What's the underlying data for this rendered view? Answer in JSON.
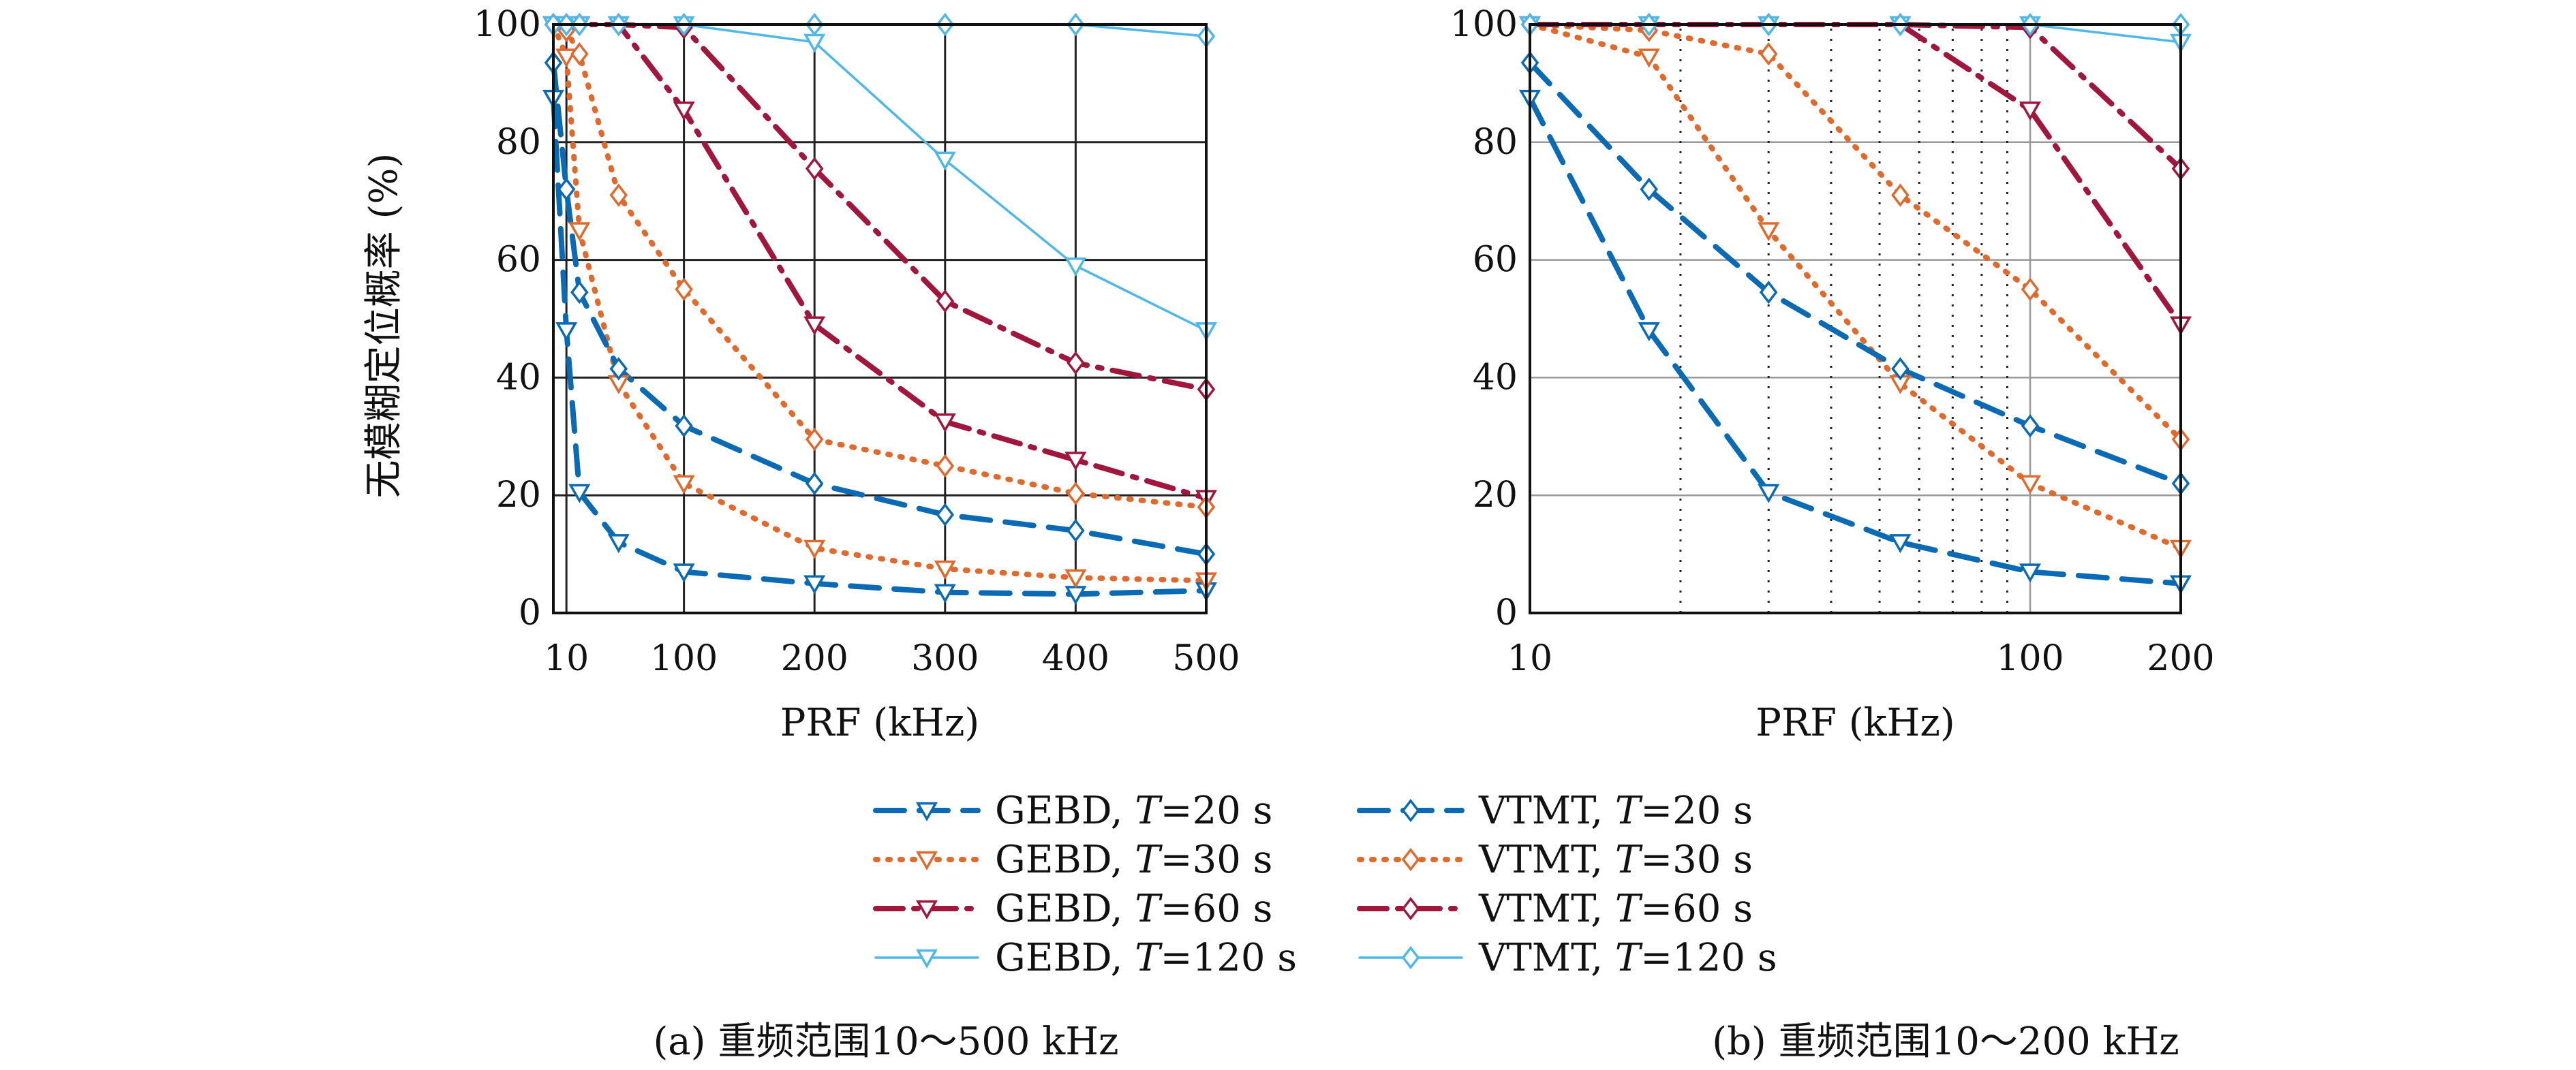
{
  "figure": {
    "caption_a": "(a) 重频范围10～500 kHz",
    "caption_b": "(b) 重频范围10～200 kHz"
  },
  "legend": {
    "entries": [
      {
        "method": "GEBD",
        "t_value": "20 s",
        "color": "#0a6ab3",
        "dash": "long-dash",
        "marker": "triangle-down"
      },
      {
        "method": "GEBD",
        "t_value": "30 s",
        "color": "#e06a2c",
        "dash": "dotted",
        "marker": "triangle-down"
      },
      {
        "method": "GEBD",
        "t_value": "60 s",
        "color": "#a0163d",
        "dash": "dash-dot",
        "marker": "triangle-down"
      },
      {
        "method": "GEBD",
        "t_value": "120 s",
        "color": "#4fb8e6",
        "dash": "solid",
        "marker": "triangle-down"
      },
      {
        "method": "VTMT",
        "t_value": "20 s",
        "color": "#0a6ab3",
        "dash": "long-dash",
        "marker": "diamond"
      },
      {
        "method": "VTMT",
        "t_value": "30 s",
        "color": "#e06a2c",
        "dash": "dotted",
        "marker": "diamond"
      },
      {
        "method": "VTMT",
        "t_value": "60 s",
        "color": "#a0163d",
        "dash": "dash-dot",
        "marker": "diamond"
      },
      {
        "method": "VTMT",
        "t_value": "120 s",
        "color": "#4fb8e6",
        "dash": "solid",
        "marker": "diamond"
      }
    ],
    "t_symbol": "T",
    "separator": ", ",
    "equals": "="
  },
  "chart_data": [
    {
      "type": "line",
      "panel": "a",
      "xlabel": "PRF (kHz)",
      "ylabel": "无模糊定位概率 (%)",
      "xscale": "linear",
      "xlim": [
        0,
        500
      ],
      "ylim": [
        0,
        100
      ],
      "xticks": [
        10,
        100,
        200,
        300,
        400,
        500
      ],
      "xtick_labels": [
        "10",
        "100",
        "200",
        "300",
        "400",
        "500"
      ],
      "yticks": [
        0,
        20,
        40,
        60,
        80,
        100
      ],
      "ytick_labels": [
        "0",
        "20",
        "40",
        "60",
        "80",
        "100"
      ],
      "grid": true,
      "series": [
        {
          "legend_index": 0,
          "x": [
            0,
            10,
            20,
            50,
            100,
            200,
            300,
            400,
            500
          ],
          "y": [
            87.5,
            48,
            20.5,
            12,
            7,
            5,
            3.5,
            3.2,
            3.8
          ]
        },
        {
          "legend_index": 1,
          "x": [
            0,
            10,
            20,
            50,
            100,
            200,
            300,
            400,
            500
          ],
          "y": [
            100,
            94.5,
            65,
            39,
            22,
            11,
            7.5,
            6,
            5.5
          ]
        },
        {
          "legend_index": 2,
          "x": [
            0,
            10,
            20,
            50,
            100,
            200,
            300,
            400,
            500
          ],
          "y": [
            100,
            100,
            100,
            100,
            85.5,
            49,
            32.5,
            26,
            19.5
          ]
        },
        {
          "legend_index": 3,
          "x": [
            0,
            10,
            20,
            50,
            100,
            200,
            300,
            400,
            500
          ],
          "y": [
            100,
            100,
            100,
            100,
            100,
            97,
            77,
            59,
            48
          ]
        },
        {
          "legend_index": 4,
          "x": [
            0,
            10,
            20,
            50,
            100,
            200,
            300,
            400,
            500
          ],
          "y": [
            93.5,
            72,
            54.5,
            41.5,
            31.8,
            22,
            16.7,
            14,
            10
          ]
        },
        {
          "legend_index": 5,
          "x": [
            0,
            10,
            20,
            50,
            100,
            200,
            300,
            400,
            500
          ],
          "y": [
            100,
            99,
            95,
            71,
            55,
            29.5,
            25,
            20.3,
            18
          ]
        },
        {
          "legend_index": 6,
          "x": [
            0,
            10,
            20,
            50,
            100,
            200,
            300,
            400,
            500
          ],
          "y": [
            100,
            100,
            100,
            100,
            99.5,
            75.5,
            53,
            42.5,
            38
          ]
        },
        {
          "legend_index": 7,
          "x": [
            0,
            10,
            20,
            50,
            100,
            200,
            300,
            400,
            500
          ],
          "y": [
            100,
            100,
            100,
            100,
            100,
            100,
            100,
            100,
            98
          ]
        }
      ]
    },
    {
      "type": "line",
      "panel": "b",
      "xlabel": "PRF (kHz)",
      "ylabel": "",
      "xscale": "log",
      "xlim": [
        10,
        200
      ],
      "ylim": [
        0,
        100
      ],
      "xticks": [
        10,
        100,
        200
      ],
      "xtick_labels": [
        "10",
        "100",
        "200"
      ],
      "minor_xticks": [
        20,
        30,
        40,
        50,
        60,
        70,
        80,
        90
      ],
      "yticks": [
        0,
        20,
        40,
        60,
        80,
        100
      ],
      "ytick_labels": [
        "0",
        "20",
        "40",
        "60",
        "80",
        "100"
      ],
      "grid": true,
      "series": [
        {
          "legend_index": 0,
          "x": [
            10,
            17.3,
            30,
            55,
            100,
            200
          ],
          "y": [
            87.5,
            48,
            20.5,
            12,
            7,
            5
          ]
        },
        {
          "legend_index": 1,
          "x": [
            10,
            17.3,
            30,
            55,
            100,
            200
          ],
          "y": [
            100,
            94.5,
            65,
            39,
            22,
            11
          ]
        },
        {
          "legend_index": 2,
          "x": [
            10,
            17.3,
            30,
            55,
            100,
            200
          ],
          "y": [
            100,
            100,
            100,
            100,
            85.5,
            49
          ]
        },
        {
          "legend_index": 3,
          "x": [
            10,
            17.3,
            30,
            55,
            100,
            200
          ],
          "y": [
            100,
            100,
            100,
            100,
            100,
            97
          ]
        },
        {
          "legend_index": 4,
          "x": [
            10,
            17.3,
            30,
            55,
            100,
            200
          ],
          "y": [
            93.5,
            72,
            54.5,
            41.5,
            31.8,
            22
          ]
        },
        {
          "legend_index": 5,
          "x": [
            10,
            17.3,
            30,
            55,
            100,
            200
          ],
          "y": [
            100,
            99,
            95,
            71,
            55,
            29.5
          ]
        },
        {
          "legend_index": 6,
          "x": [
            10,
            17.3,
            30,
            55,
            100,
            200
          ],
          "y": [
            100,
            100,
            100,
            100,
            99.5,
            75.5
          ]
        },
        {
          "legend_index": 7,
          "x": [
            10,
            17.3,
            30,
            55,
            100,
            200
          ],
          "y": [
            100,
            100,
            100,
            100,
            100,
            100
          ]
        }
      ]
    }
  ]
}
